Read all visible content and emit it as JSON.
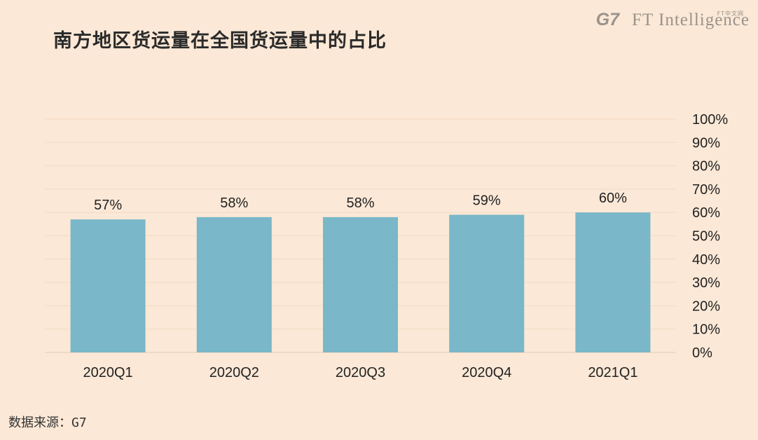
{
  "title": "南方地区货运量在全国货运量中的占比",
  "brand": {
    "g7": "G7",
    "ft": "FT Intelligence",
    "ft_sub": "FT中文网"
  },
  "source": "数据来源：G7",
  "colors": {
    "bar": "#79b7c9",
    "background": "#fbe8d6",
    "grid": "#f4dac4"
  },
  "chart_data": {
    "type": "bar",
    "categories": [
      "2020Q1",
      "2020Q2",
      "2020Q3",
      "2020Q4",
      "2021Q1"
    ],
    "values": [
      57,
      58,
      58,
      59,
      60
    ],
    "value_labels": [
      "57%",
      "58%",
      "58%",
      "59%",
      "60%"
    ],
    "ylim": [
      0,
      100
    ],
    "yticks": [
      "0%",
      "10%",
      "20%",
      "30%",
      "40%",
      "50%",
      "60%",
      "70%",
      "80%",
      "90%",
      "100%"
    ],
    "y_axis_position": "right",
    "grid": true
  }
}
